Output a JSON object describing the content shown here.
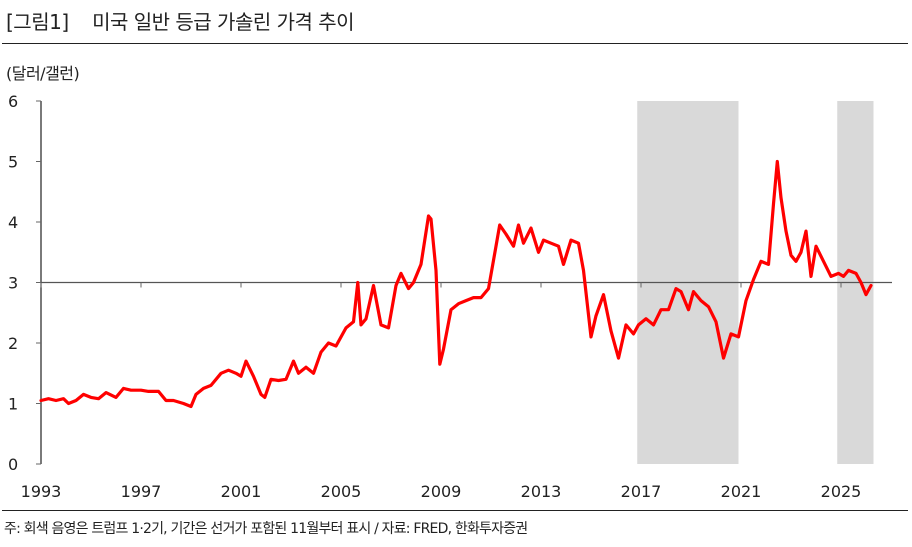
{
  "header": {
    "figure_label": "[그림1]",
    "title": "미국 일반 등급 가솔린 가격 추이",
    "unit": "(달러/갤런)"
  },
  "footer": {
    "note": "주: 회색 음영은 트럼프 1·2기, 기간은 선거가 포함된 11월부터 표시 / 자료: FRED, 한화투자증권"
  },
  "colors": {
    "line": "#ff0000",
    "shade": "#d9d9d9",
    "axis": "#222222",
    "reference": "#555555"
  },
  "chart_data": {
    "type": "line",
    "title": "미국 일반 등급 가솔린 가격 추이",
    "xlabel": "",
    "ylabel": "(달러/갤런)",
    "ylim": [
      0,
      6
    ],
    "yticks": [
      0,
      1,
      2,
      3,
      4,
      5,
      6
    ],
    "xlim": [
      1993,
      2026.5
    ],
    "xticks": [
      1993,
      1997,
      2001,
      2005,
      2009,
      2013,
      2017,
      2021,
      2025
    ],
    "reference_line": 3,
    "grid": false,
    "legend": null,
    "shaded_periods": [
      {
        "label": "트럼프 1기",
        "start": 2016.85,
        "end": 2020.9
      },
      {
        "label": "트럼프 2기",
        "start": 2024.85,
        "end": 2026.3
      }
    ],
    "series": [
      {
        "name": "미국 일반 등급 가솔린 가격",
        "x": [
          1993.0,
          1993.3,
          1993.6,
          1993.9,
          1994.1,
          1994.4,
          1994.7,
          1995.0,
          1995.3,
          1995.6,
          1996.0,
          1996.3,
          1996.6,
          1997.0,
          1997.3,
          1997.7,
          1998.0,
          1998.3,
          1998.7,
          1999.0,
          1999.2,
          1999.5,
          1999.8,
          2000.2,
          2000.5,
          2000.8,
          2001.0,
          2001.2,
          2001.5,
          2001.8,
          2001.95,
          2002.2,
          2002.5,
          2002.8,
          2003.1,
          2003.3,
          2003.6,
          2003.9,
          2004.2,
          2004.5,
          2004.8,
          2005.2,
          2005.5,
          2005.67,
          2005.8,
          2006.0,
          2006.3,
          2006.6,
          2006.9,
          2007.2,
          2007.4,
          2007.7,
          2007.9,
          2008.2,
          2008.5,
          2008.6,
          2008.8,
          2008.95,
          2009.1,
          2009.4,
          2009.7,
          2010.0,
          2010.3,
          2010.6,
          2010.9,
          2011.2,
          2011.35,
          2011.6,
          2011.9,
          2012.1,
          2012.3,
          2012.6,
          2012.9,
          2013.1,
          2013.4,
          2013.7,
          2013.9,
          2014.2,
          2014.5,
          2014.7,
          2015.0,
          2015.2,
          2015.5,
          2015.8,
          2016.1,
          2016.4,
          2016.7,
          2016.9,
          2017.2,
          2017.5,
          2017.8,
          2018.1,
          2018.4,
          2018.6,
          2018.9,
          2019.1,
          2019.4,
          2019.7,
          2020.0,
          2020.3,
          2020.6,
          2020.9,
          2021.2,
          2021.5,
          2021.8,
          2022.1,
          2022.3,
          2022.45,
          2022.6,
          2022.8,
          2023.0,
          2023.2,
          2023.4,
          2023.6,
          2023.8,
          2024.0,
          2024.3,
          2024.6,
          2024.9,
          2025.1,
          2025.3,
          2025.6,
          2025.8,
          2026.0,
          2026.2
        ],
        "values": [
          1.05,
          1.08,
          1.05,
          1.08,
          1.0,
          1.05,
          1.15,
          1.1,
          1.08,
          1.18,
          1.1,
          1.25,
          1.22,
          1.22,
          1.2,
          1.2,
          1.05,
          1.05,
          1.0,
          0.95,
          1.15,
          1.25,
          1.3,
          1.5,
          1.55,
          1.5,
          1.45,
          1.7,
          1.45,
          1.15,
          1.1,
          1.4,
          1.38,
          1.4,
          1.7,
          1.5,
          1.6,
          1.5,
          1.85,
          2.0,
          1.95,
          2.25,
          2.35,
          3.0,
          2.3,
          2.4,
          2.95,
          2.3,
          2.25,
          2.95,
          3.15,
          2.9,
          3.0,
          3.3,
          4.1,
          4.05,
          3.2,
          1.65,
          1.9,
          2.55,
          2.65,
          2.7,
          2.75,
          2.75,
          2.9,
          3.6,
          3.95,
          3.8,
          3.6,
          3.95,
          3.65,
          3.9,
          3.5,
          3.7,
          3.65,
          3.6,
          3.3,
          3.7,
          3.65,
          3.2,
          2.1,
          2.45,
          2.8,
          2.2,
          1.75,
          2.3,
          2.15,
          2.3,
          2.4,
          2.3,
          2.55,
          2.55,
          2.9,
          2.85,
          2.55,
          2.85,
          2.7,
          2.6,
          2.35,
          1.75,
          2.15,
          2.1,
          2.7,
          3.05,
          3.35,
          3.3,
          4.3,
          5.0,
          4.4,
          3.85,
          3.45,
          3.35,
          3.5,
          3.85,
          3.1,
          3.6,
          3.35,
          3.1,
          3.15,
          3.1,
          3.2,
          3.15,
          3.0,
          2.8,
          2.95
        ]
      }
    ]
  }
}
